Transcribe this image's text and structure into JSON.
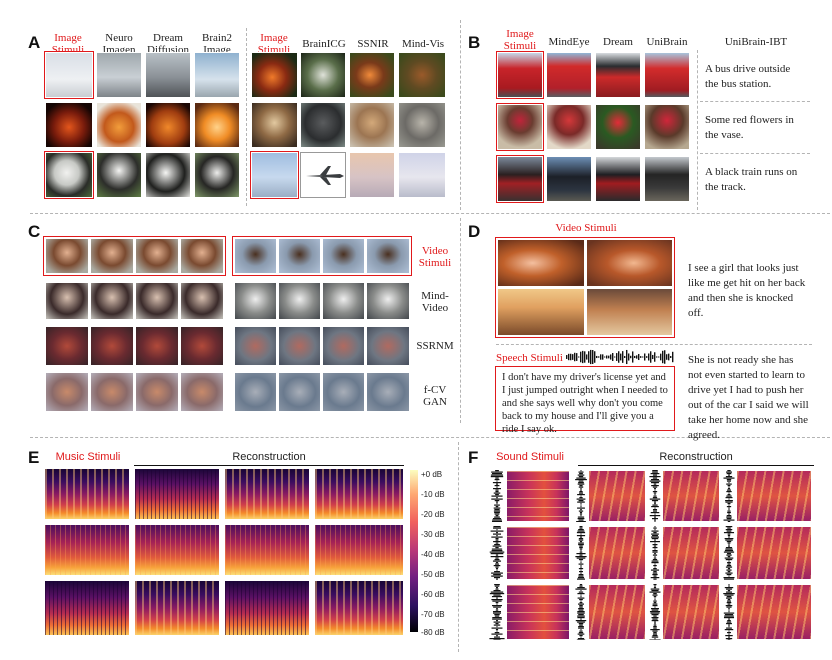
{
  "panels": {
    "a": "A",
    "b": "B",
    "c": "C",
    "d": "D",
    "e": "E",
    "f": "F"
  },
  "panel_a": {
    "headers_left": [
      "Image Stimuli",
      "Neuro Imagen",
      "Dream Diffusion",
      "Brain2 Image"
    ],
    "headers_right": [
      "Image Stimuli",
      "BrainICG",
      "SSNIR",
      "Mind-Vis"
    ]
  },
  "panel_b": {
    "headers": [
      "Image Stimuli",
      "MindEye",
      "Dream",
      "UniBrain",
      "UniBrain-IBT"
    ],
    "captions": [
      "A bus drive outside the bus station.",
      "Some red flowers in the vase.",
      "A black train runs on the track."
    ]
  },
  "panel_c": {
    "row_labels": [
      "Video Stimuli",
      "Mind-Video",
      "SSRNM",
      "f-CV GAN"
    ]
  },
  "panel_d": {
    "video_title": "Video Stimuli",
    "video_caption": "I see a girl that looks just like me get hit on her back and then she is knocked off.",
    "speech_title": "Speech Stimuli",
    "speech_text": "I don't have my driver's license yet and I just jumped outright when I needed to and she says well why don't you come back to my house and I'll give you a ride I say ok.",
    "speech_caption": "She is not ready she has not even started to learn to drive yet I had to push her out of the car I said we will take her home now and she agreed."
  },
  "panel_e": {
    "title_left": "Music Stimuli",
    "title_right": "Reconstruction",
    "colorbar_ticks": [
      "+0 dB",
      "-10 dB",
      "-20 dB",
      "-30 dB",
      "-40 dB",
      "-50 dB",
      "-60 dB",
      "-70 dB",
      "-80 dB"
    ]
  },
  "panel_f": {
    "title_left": "Sound Stimuli",
    "title_right": "Reconstruction"
  },
  "colors": {
    "accent_red": "#e0191b",
    "divider": "#b4b4b4"
  }
}
